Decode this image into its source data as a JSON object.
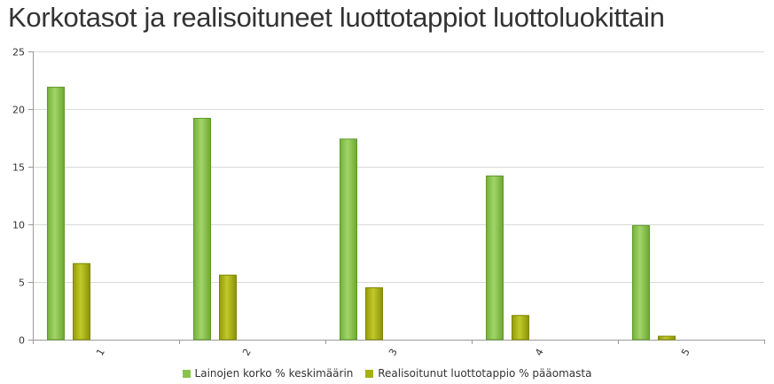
{
  "chart_data": {
    "type": "bar",
    "title": "Korkotasot ja realisoituneet luottotappiot luottoluokittain",
    "categories": [
      "1",
      "2",
      "3",
      "4",
      "5"
    ],
    "series": [
      {
        "name": "Lainojen korko % keskimäärin",
        "values": [
          21.9,
          19.2,
          17.4,
          14.2,
          9.9
        ],
        "color": "#8bc34a"
      },
      {
        "name": "Realisoitunut luottotappio % pääomasta",
        "values": [
          6.6,
          5.6,
          4.5,
          2.1,
          0.3
        ],
        "color": "#a6b010"
      }
    ],
    "ylim": [
      0,
      25
    ],
    "yticks": [
      0,
      5,
      10,
      15,
      20,
      25
    ],
    "grid": true,
    "legend": "bottom"
  }
}
